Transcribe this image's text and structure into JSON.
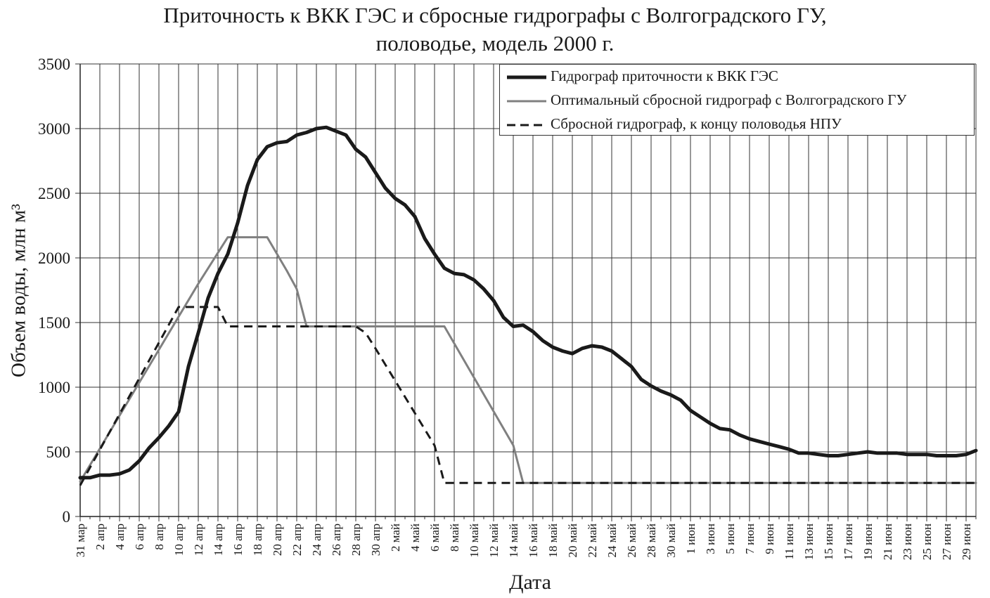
{
  "title_line1": "Приточность  к ВКК ГЭС и сбросные гидрографы с Волгоградского ГУ,",
  "title_line2": "половодье, модель 2000 г.",
  "chart_data": {
    "type": "line",
    "title": "Приточность  к ВКК ГЭС и сбросные гидрографы с Волгоградского ГУ, половодье, модель 2000 г.",
    "xlabel": "Дата",
    "ylabel": "Объем воды, млн м³",
    "ylim": [
      0,
      3500
    ],
    "yticks": [
      0,
      500,
      1000,
      1500,
      2000,
      2500,
      3000,
      3500
    ],
    "grid": true,
    "legend_position": "top-right",
    "x_tick_labels": [
      "31 мар",
      "2 апр",
      "4 апр",
      "6 апр",
      "8 апр",
      "10 апр",
      "12 апр",
      "14 апр",
      "16 апр",
      "18 апр",
      "20 апр",
      "22 апр",
      "24 апр",
      "26 апр",
      "28 апр",
      "30 апр",
      "2 май",
      "4 май",
      "6 май",
      "8 май",
      "10 май",
      "12 май",
      "14 май",
      "16 май",
      "18 май",
      "20 май",
      "22 май",
      "24 май",
      "26 май",
      "28 май",
      "30 май",
      "1 июн",
      "3 июн",
      "5 июн",
      "7 июн",
      "9 июн",
      "11 июн",
      "13 июн",
      "15 июн",
      "17 июн",
      "19 июн",
      "21 июн",
      "23 июн",
      "25 июн",
      "27 июн",
      "29 июн"
    ],
    "series": [
      {
        "name": "Гидрограф приточности к ВКК ГЭС",
        "color": "#1a1a1a",
        "style": "solid-thick",
        "x": [
          0,
          1,
          2,
          3,
          4,
          5,
          6,
          7,
          8,
          9,
          10,
          11,
          12,
          13,
          14,
          15,
          16,
          17,
          18,
          19,
          20,
          21,
          22,
          23,
          24,
          25,
          26,
          27,
          28,
          29,
          30,
          31,
          32,
          33,
          34,
          35,
          36,
          37,
          38,
          39,
          40,
          41,
          42,
          43,
          44,
          45,
          46,
          47,
          48,
          49,
          50,
          51,
          52,
          53,
          54,
          55,
          56,
          57,
          58,
          59,
          60,
          61,
          62,
          63,
          64,
          65,
          66,
          67,
          68,
          69,
          70,
          71,
          72,
          73,
          74,
          75,
          76,
          77,
          78,
          79,
          80,
          81,
          82,
          83,
          84,
          85,
          86,
          87,
          88,
          89,
          90,
          91
        ],
        "values": [
          300,
          300,
          320,
          320,
          330,
          360,
          430,
          530,
          610,
          700,
          810,
          1160,
          1420,
          1690,
          1880,
          2030,
          2270,
          2560,
          2760,
          2860,
          2890,
          2900,
          2950,
          2970,
          3000,
          3010,
          2980,
          2950,
          2840,
          2780,
          2660,
          2540,
          2460,
          2410,
          2320,
          2150,
          2030,
          1920,
          1880,
          1870,
          1830,
          1760,
          1670,
          1540,
          1470,
          1480,
          1430,
          1360,
          1310,
          1280,
          1260,
          1300,
          1320,
          1310,
          1280,
          1220,
          1160,
          1060,
          1010,
          970,
          940,
          900,
          820,
          770,
          720,
          680,
          670,
          630,
          600,
          580,
          560,
          540,
          520,
          490,
          490,
          480,
          470,
          470,
          480,
          490,
          500,
          490,
          490,
          490,
          480,
          480,
          480,
          470,
          470,
          470,
          480,
          510
        ]
      },
      {
        "name": "Оптимальный сбросной гидрограф с Волгоградского ГУ",
        "color": "#808080",
        "style": "solid",
        "x": [
          0,
          12,
          15,
          19,
          21,
          22,
          23,
          37,
          44,
          45,
          91
        ],
        "values": [
          270,
          1800,
          2160,
          2160,
          1900,
          1760,
          1470,
          1470,
          550,
          260,
          260
        ]
      },
      {
        "name": "Сбросной гидрограф, к концу половодья НПУ",
        "color": "#1a1a1a",
        "style": "dashed",
        "x": [
          0,
          10,
          14,
          15,
          28,
          29,
          30,
          36,
          37,
          91
        ],
        "values": [
          240,
          1620,
          1620,
          1470,
          1470,
          1420,
          1300,
          550,
          260,
          260
        ]
      }
    ]
  }
}
